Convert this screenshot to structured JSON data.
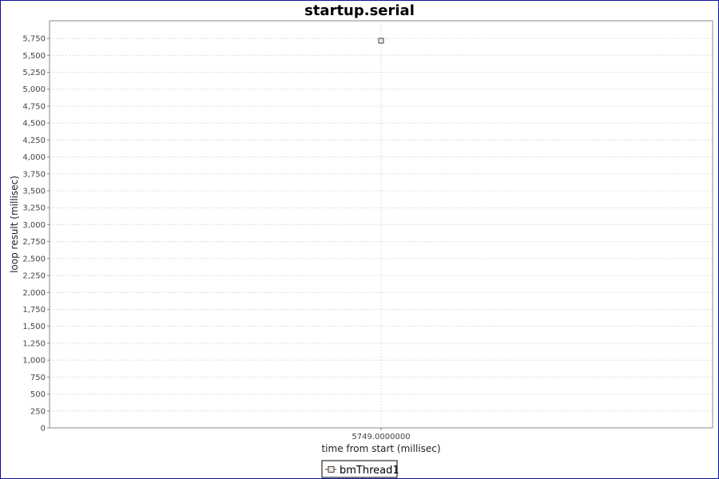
{
  "chart_data": {
    "type": "scatter",
    "title": "startup.serial",
    "xlabel": "time from start (millisec)",
    "ylabel": "loop result (millisec)",
    "xlim": [
      5748,
      5750
    ],
    "ylim": [
      0,
      6010
    ],
    "x_ticks": [
      {
        "value": 5749,
        "label": "5749.0000000"
      }
    ],
    "y_ticks": [
      {
        "value": 0,
        "label": "0"
      },
      {
        "value": 250,
        "label": "250"
      },
      {
        "value": 500,
        "label": "500"
      },
      {
        "value": 750,
        "label": "750"
      },
      {
        "value": 1000,
        "label": "1,000"
      },
      {
        "value": 1250,
        "label": "1,250"
      },
      {
        "value": 1500,
        "label": "1,500"
      },
      {
        "value": 1750,
        "label": "1,750"
      },
      {
        "value": 2000,
        "label": "2,000"
      },
      {
        "value": 2250,
        "label": "2,250"
      },
      {
        "value": 2500,
        "label": "2,500"
      },
      {
        "value": 2750,
        "label": "2,750"
      },
      {
        "value": 3000,
        "label": "3,000"
      },
      {
        "value": 3250,
        "label": "3,250"
      },
      {
        "value": 3500,
        "label": "3,500"
      },
      {
        "value": 3750,
        "label": "3,750"
      },
      {
        "value": 4000,
        "label": "4,000"
      },
      {
        "value": 4250,
        "label": "4,250"
      },
      {
        "value": 4500,
        "label": "4,500"
      },
      {
        "value": 4750,
        "label": "4,750"
      },
      {
        "value": 5000,
        "label": "5,000"
      },
      {
        "value": 5250,
        "label": "5,250"
      },
      {
        "value": 5500,
        "label": "5,500"
      },
      {
        "value": 5750,
        "label": "5,750"
      }
    ],
    "grid": true,
    "legend_position": "bottom",
    "series": [
      {
        "name": "bmThread1",
        "color": "#663333",
        "marker_fill": "#e0f4ea",
        "points": [
          {
            "x": 5749,
            "y": 5715
          }
        ]
      }
    ]
  }
}
